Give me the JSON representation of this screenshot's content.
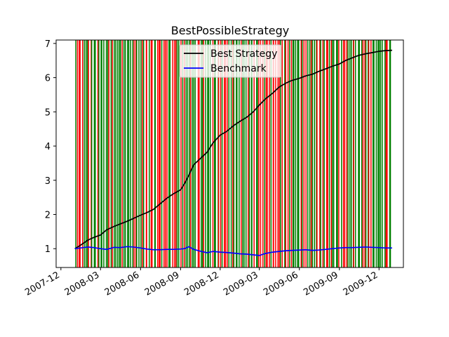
{
  "chart_data": {
    "type": "line",
    "title": "BestPossibleStrategy",
    "xlabel": "",
    "ylabel": "",
    "x_range": [
      "2007-11-20",
      "2010-01-26"
    ],
    "data_range": [
      "2008-01-02",
      "2009-12-31"
    ],
    "ylim": [
      0.45,
      7.1
    ],
    "yticks": [
      1,
      2,
      3,
      4,
      5,
      6,
      7
    ],
    "xticks": [
      "2007-12",
      "2008-03",
      "2008-06",
      "2008-09",
      "2008-12",
      "2009-03",
      "2009-06",
      "2009-09",
      "2009-12"
    ],
    "grid": false,
    "legend_position": "upper center",
    "series": [
      {
        "name": "Best Strategy",
        "color": "#000000",
        "x": [
          "2008-01-02",
          "2008-01-15",
          "2008-02-01",
          "2008-02-15",
          "2008-03-01",
          "2008-03-15",
          "2008-04-01",
          "2008-04-15",
          "2008-05-01",
          "2008-05-15",
          "2008-06-01",
          "2008-06-15",
          "2008-07-01",
          "2008-07-15",
          "2008-08-01",
          "2008-08-15",
          "2008-09-01",
          "2008-09-10",
          "2008-09-20",
          "2008-10-01",
          "2008-10-15",
          "2008-11-01",
          "2008-11-15",
          "2008-12-01",
          "2008-12-15",
          "2009-01-01",
          "2009-01-15",
          "2009-02-01",
          "2009-02-15",
          "2009-03-01",
          "2009-03-15",
          "2009-04-01",
          "2009-04-15",
          "2009-05-01",
          "2009-05-15",
          "2009-06-01",
          "2009-06-15",
          "2009-07-01",
          "2009-07-15",
          "2009-08-01",
          "2009-08-15",
          "2009-09-01",
          "2009-09-15",
          "2009-10-01",
          "2009-10-15",
          "2009-11-01",
          "2009-11-15",
          "2009-12-01",
          "2009-12-15",
          "2009-12-31"
        ],
        "values": [
          1.0,
          1.1,
          1.25,
          1.33,
          1.4,
          1.55,
          1.65,
          1.72,
          1.8,
          1.88,
          1.98,
          2.05,
          2.15,
          2.3,
          2.48,
          2.6,
          2.72,
          2.9,
          3.15,
          3.45,
          3.62,
          3.82,
          4.1,
          4.32,
          4.42,
          4.6,
          4.72,
          4.85,
          5.0,
          5.2,
          5.38,
          5.55,
          5.72,
          5.84,
          5.92,
          5.98,
          6.05,
          6.1,
          6.18,
          6.26,
          6.33,
          6.4,
          6.5,
          6.58,
          6.65,
          6.7,
          6.73,
          6.77,
          6.79,
          6.8
        ]
      },
      {
        "name": "Benchmark",
        "color": "#0000ff",
        "x": [
          "2008-01-02",
          "2008-01-15",
          "2008-02-01",
          "2008-02-15",
          "2008-03-01",
          "2008-03-15",
          "2008-04-01",
          "2008-04-15",
          "2008-05-01",
          "2008-05-15",
          "2008-06-01",
          "2008-06-15",
          "2008-07-01",
          "2008-07-15",
          "2008-08-01",
          "2008-08-15",
          "2008-09-01",
          "2008-09-10",
          "2008-09-20",
          "2008-10-01",
          "2008-10-15",
          "2008-11-01",
          "2008-11-15",
          "2008-12-01",
          "2008-12-15",
          "2009-01-01",
          "2009-01-15",
          "2009-02-01",
          "2009-02-15",
          "2009-03-01",
          "2009-03-15",
          "2009-04-01",
          "2009-04-15",
          "2009-05-01",
          "2009-05-15",
          "2009-06-01",
          "2009-06-15",
          "2009-07-01",
          "2009-07-15",
          "2009-08-01",
          "2009-08-15",
          "2009-09-01",
          "2009-09-15",
          "2009-10-01",
          "2009-10-15",
          "2009-11-01",
          "2009-11-15",
          "2009-12-01",
          "2009-12-15",
          "2009-12-31"
        ],
        "values": [
          1.0,
          1.02,
          1.05,
          1.03,
          1.0,
          0.98,
          1.04,
          1.03,
          1.06,
          1.05,
          1.02,
          0.99,
          0.97,
          0.97,
          0.98,
          0.98,
          0.99,
          1.0,
          1.06,
          0.98,
          0.93,
          0.88,
          0.92,
          0.9,
          0.89,
          0.87,
          0.85,
          0.84,
          0.82,
          0.8,
          0.86,
          0.9,
          0.92,
          0.94,
          0.95,
          0.96,
          0.97,
          0.95,
          0.96,
          0.98,
          1.0,
          1.02,
          1.03,
          1.03,
          1.04,
          1.05,
          1.04,
          1.03,
          1.02,
          1.02
        ]
      }
    ],
    "trade_markers": {
      "long_color": "#008000",
      "short_color": "#ff0000",
      "count": 190,
      "long_fraction": 0.6
    }
  }
}
